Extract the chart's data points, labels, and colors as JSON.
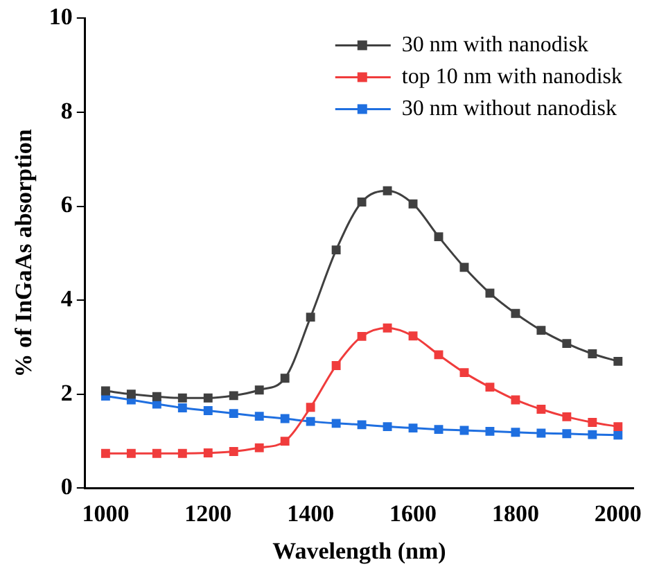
{
  "chart_data": {
    "type": "line",
    "xlabel": "Wavelength (nm)",
    "ylabel": "% of InGaAs absorption",
    "x": [
      1000,
      1050,
      1100,
      1150,
      1200,
      1250,
      1300,
      1350,
      1400,
      1450,
      1500,
      1550,
      1600,
      1650,
      1700,
      1750,
      1800,
      1850,
      1900,
      1950,
      2000
    ],
    "series": [
      {
        "name": "30 nm with nanodisk",
        "color": "#404040",
        "values": [
          2.07,
          2.0,
          1.95,
          1.92,
          1.92,
          1.97,
          2.09,
          2.34,
          3.64,
          5.07,
          6.09,
          6.33,
          6.05,
          5.35,
          4.7,
          4.15,
          3.72,
          3.36,
          3.08,
          2.86,
          2.7
        ]
      },
      {
        "name": "top 10 nm with nanodisk",
        "color": "#f03c3c",
        "values": [
          0.74,
          0.74,
          0.74,
          0.74,
          0.75,
          0.78,
          0.86,
          1.0,
          1.72,
          2.61,
          3.23,
          3.41,
          3.24,
          2.84,
          2.46,
          2.15,
          1.88,
          1.68,
          1.52,
          1.4,
          1.31
        ]
      },
      {
        "name": "30 nm without nanodisk",
        "color": "#1f6fe0",
        "values": [
          1.96,
          1.88,
          1.79,
          1.71,
          1.65,
          1.59,
          1.53,
          1.48,
          1.42,
          1.38,
          1.35,
          1.31,
          1.28,
          1.25,
          1.23,
          1.21,
          1.19,
          1.17,
          1.16,
          1.14,
          1.13
        ]
      }
    ],
    "xlim": [
      960,
      2030
    ],
    "xticks": [
      1000,
      1200,
      1400,
      1600,
      1800,
      2000
    ],
    "ylim": [
      0,
      10
    ],
    "yticks": [
      0,
      2,
      4,
      6,
      8,
      10
    ],
    "grid": false,
    "legend": "top right",
    "marker": "square",
    "line_style": "solid"
  }
}
